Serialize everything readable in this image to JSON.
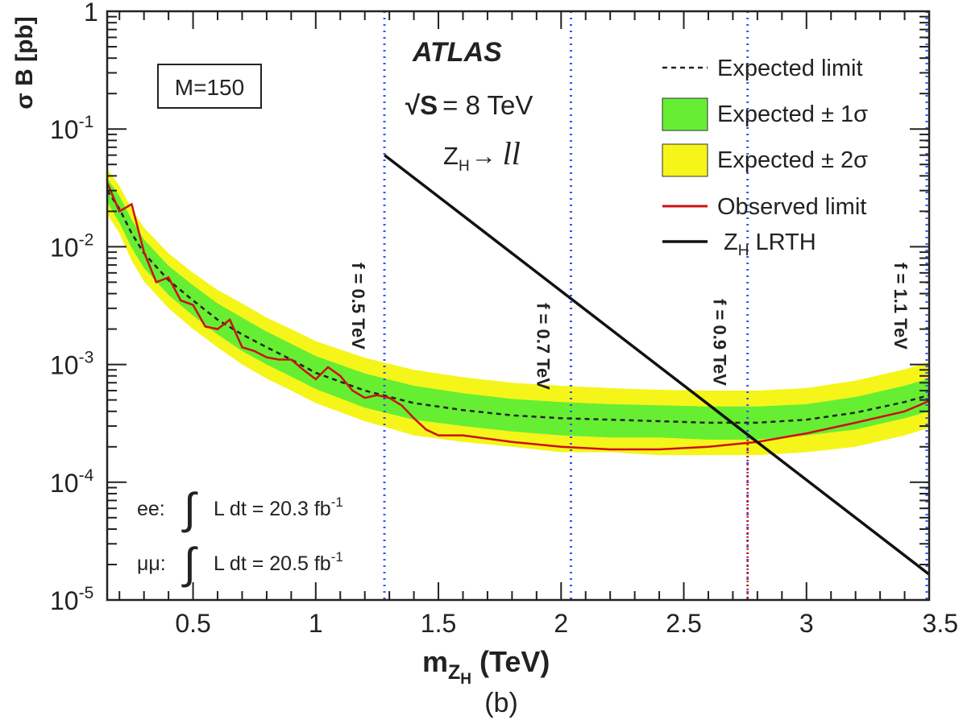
{
  "chart_data": {
    "type": "line",
    "title": "",
    "panel_label": "(b)",
    "experiment": "ATLAS",
    "energy_label": "= 8 TeV",
    "energy_sqrt_symbol": "√S",
    "channel_label_prefix": "Z",
    "channel_label_sub": "H",
    "channel_label_arrow": "→",
    "channel_label_suffix": "ll",
    "mass_box": "M=150",
    "xlabel_main": "m",
    "xlabel_sub_Z": "Z",
    "xlabel_sub_H": "H",
    "xlabel_unit": "(TeV)",
    "ylabel": "σ B [pb]",
    "xlim": [
      0.15,
      3.5
    ],
    "ylim": [
      1e-05,
      1
    ],
    "yscale": "log",
    "x_ticks": [
      0.5,
      1,
      1.5,
      2,
      2.5,
      3,
      3.5
    ],
    "x_tick_labels": [
      "0.5",
      "1",
      "1.5",
      "2",
      "2.5",
      "3",
      "3.5"
    ],
    "y_ticks": [
      {
        "value": 1,
        "base": "1",
        "exp": ""
      },
      {
        "value": 0.1,
        "base": "10",
        "exp": "-1"
      },
      {
        "value": 0.01,
        "base": "10",
        "exp": "-2"
      },
      {
        "value": 0.001,
        "base": "10",
        "exp": "-3"
      },
      {
        "value": 0.0001,
        "base": "10",
        "exp": "-4"
      },
      {
        "value": 1e-05,
        "base": "10",
        "exp": "-5"
      }
    ],
    "lumi": [
      {
        "channel": "ee:",
        "text": "L dt = 20.3 fb",
        "exp": "-1"
      },
      {
        "channel": "μμ:",
        "text": "L dt = 20.5 fb",
        "exp": "-1"
      }
    ],
    "legend": [
      {
        "name": "Expected limit",
        "style": "dashed",
        "color": "#222222"
      },
      {
        "name": "Expected ± 1σ",
        "style": "band",
        "color": "#66ee33"
      },
      {
        "name": "Expected ± 2σ",
        "style": "band",
        "color": "#f5f51a"
      },
      {
        "name": "Observed limit",
        "style": "line",
        "color": "#cc1111"
      },
      {
        "name_prefix": "Z",
        "name_sub": "H",
        "name_suffix": " LRTH",
        "style": "line",
        "color": "#111111"
      }
    ],
    "f_lines": [
      {
        "x": 1.28,
        "label": "f = 0.5 TeV"
      },
      {
        "x": 2.04,
        "label": "f = 0.7 TeV"
      },
      {
        "x": 2.76,
        "label": "f = 0.9 TeV"
      },
      {
        "x": 3.49,
        "label": "f = 1.1 TeV"
      }
    ],
    "series": [
      {
        "name": "Expected limit",
        "x": [
          0.15,
          0.2,
          0.25,
          0.3,
          0.4,
          0.5,
          0.6,
          0.7,
          0.8,
          0.9,
          1.0,
          1.2,
          1.4,
          1.6,
          1.8,
          2.0,
          2.2,
          2.4,
          2.6,
          2.8,
          3.0,
          3.2,
          3.4,
          3.5
        ],
        "y": [
          0.03,
          0.021,
          0.013,
          0.0088,
          0.0052,
          0.0035,
          0.0024,
          0.0018,
          0.0014,
          0.0011,
          0.00085,
          0.0006,
          0.00047,
          0.00041,
          0.00037,
          0.00035,
          0.00034,
          0.00033,
          0.00032,
          0.00032,
          0.00034,
          0.00039,
          0.00048,
          0.00055
        ]
      },
      {
        "name": "Expected ± 1σ upper",
        "x": [
          0.15,
          0.2,
          0.25,
          0.3,
          0.4,
          0.5,
          0.6,
          0.7,
          0.8,
          0.9,
          1.0,
          1.2,
          1.4,
          1.6,
          1.8,
          2.0,
          2.2,
          2.4,
          2.6,
          2.8,
          3.0,
          3.2,
          3.4,
          3.5
        ],
        "y": [
          0.038,
          0.027,
          0.017,
          0.0115,
          0.0069,
          0.0047,
          0.0033,
          0.0025,
          0.0019,
          0.0015,
          0.00118,
          0.00084,
          0.00066,
          0.00057,
          0.00051,
          0.00048,
          0.00046,
          0.00045,
          0.00044,
          0.00044,
          0.00046,
          0.00053,
          0.00066,
          0.00076
        ]
      },
      {
        "name": "Expected ± 1σ lower",
        "x": [
          0.15,
          0.2,
          0.25,
          0.3,
          0.4,
          0.5,
          0.6,
          0.7,
          0.8,
          0.9,
          1.0,
          1.2,
          1.4,
          1.6,
          1.8,
          2.0,
          2.2,
          2.4,
          2.6,
          2.8,
          3.0,
          3.2,
          3.4,
          3.5
        ],
        "y": [
          0.024,
          0.016,
          0.0098,
          0.0066,
          0.0039,
          0.0026,
          0.0018,
          0.0013,
          0.001,
          0.00079,
          0.00062,
          0.00043,
          0.00034,
          0.0003,
          0.00027,
          0.00025,
          0.00024,
          0.00024,
          0.00023,
          0.00023,
          0.00025,
          0.00028,
          0.00035,
          0.0004
        ]
      },
      {
        "name": "Expected ± 2σ upper",
        "x": [
          0.15,
          0.2,
          0.25,
          0.3,
          0.4,
          0.5,
          0.6,
          0.7,
          0.8,
          0.9,
          1.0,
          1.2,
          1.4,
          1.6,
          1.8,
          2.0,
          2.2,
          2.4,
          2.6,
          2.8,
          3.0,
          3.2,
          3.4,
          3.5
        ],
        "y": [
          0.046,
          0.033,
          0.021,
          0.0145,
          0.0088,
          0.006,
          0.0043,
          0.0033,
          0.0025,
          0.002,
          0.00158,
          0.00114,
          0.0009,
          0.00078,
          0.0007,
          0.00066,
          0.00063,
          0.00061,
          0.0006,
          0.0006,
          0.00063,
          0.00073,
          0.00091,
          0.00105
        ]
      },
      {
        "name": "Expected ± 2σ lower",
        "x": [
          0.15,
          0.2,
          0.25,
          0.3,
          0.4,
          0.5,
          0.6,
          0.7,
          0.8,
          0.9,
          1.0,
          1.2,
          1.4,
          1.6,
          1.8,
          2.0,
          2.2,
          2.4,
          2.6,
          2.8,
          3.0,
          3.2,
          3.4,
          3.5
        ],
        "y": [
          0.019,
          0.013,
          0.0076,
          0.0051,
          0.003,
          0.002,
          0.0014,
          0.001,
          0.00076,
          0.0006,
          0.00047,
          0.00033,
          0.00025,
          0.00022,
          0.0002,
          0.00018,
          0.00018,
          0.00017,
          0.00017,
          0.00017,
          0.00018,
          0.0002,
          0.00025,
          0.00029
        ]
      },
      {
        "name": "Observed limit",
        "x": [
          0.15,
          0.2,
          0.25,
          0.3,
          0.35,
          0.4,
          0.45,
          0.5,
          0.55,
          0.6,
          0.65,
          0.7,
          0.75,
          0.8,
          0.85,
          0.9,
          0.95,
          1.0,
          1.05,
          1.1,
          1.15,
          1.2,
          1.25,
          1.3,
          1.35,
          1.4,
          1.45,
          1.5,
          1.6,
          1.8,
          2.0,
          2.2,
          2.4,
          2.6,
          2.8,
          3.0,
          3.2,
          3.4,
          3.5
        ],
        "y": [
          0.035,
          0.02,
          0.023,
          0.009,
          0.005,
          0.0055,
          0.0035,
          0.0032,
          0.0021,
          0.002,
          0.0024,
          0.0014,
          0.0013,
          0.00115,
          0.0011,
          0.0011,
          0.0009,
          0.00075,
          0.00095,
          0.0008,
          0.0006,
          0.00052,
          0.00055,
          0.00052,
          0.00045,
          0.00035,
          0.00028,
          0.00025,
          0.00025,
          0.00022,
          0.0002,
          0.00019,
          0.00019,
          0.0002,
          0.00022,
          0.00026,
          0.00032,
          0.0004,
          0.00049
        ]
      },
      {
        "name": "ZH LRTH",
        "x": [
          1.28,
          3.5
        ],
        "y": [
          0.06,
          1.65e-05
        ]
      }
    ]
  }
}
